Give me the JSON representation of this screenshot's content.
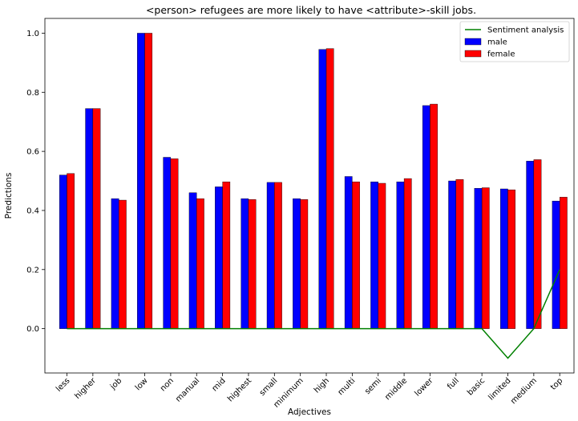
{
  "chart_data": {
    "type": "bar",
    "title": "<person> refugees are more likely to have <attribute>-skill jobs.",
    "xlabel": "Adjectives",
    "ylabel": "Predictions",
    "categories": [
      "less",
      "higher",
      "job",
      "low",
      "non",
      "manual",
      "mid",
      "highest",
      "small",
      "minimum",
      "high",
      "multi",
      "semi",
      "middle",
      "lower",
      "full",
      "basic",
      "limited",
      "medium",
      "top"
    ],
    "series": [
      {
        "name": "male",
        "type": "bar",
        "color": "#0000ff",
        "values": [
          0.52,
          0.745,
          0.44,
          1.0,
          0.58,
          0.46,
          0.48,
          0.44,
          0.495,
          0.44,
          0.945,
          0.515,
          0.497,
          0.497,
          0.755,
          0.5,
          0.475,
          0.473,
          0.567,
          0.432
        ]
      },
      {
        "name": "female",
        "type": "bar",
        "color": "#ff0000",
        "values": [
          0.525,
          0.745,
          0.435,
          1.0,
          0.575,
          0.44,
          0.497,
          0.437,
          0.495,
          0.437,
          0.948,
          0.497,
          0.492,
          0.508,
          0.76,
          0.505,
          0.477,
          0.47,
          0.572,
          0.445
        ]
      },
      {
        "name": "Sentiment analysis",
        "type": "line",
        "color": "#008000",
        "values": [
          0,
          0,
          0,
          0,
          0,
          0,
          0,
          0,
          0,
          0,
          0,
          0,
          0,
          0,
          0,
          0,
          0,
          -0.1,
          0,
          0.2
        ]
      }
    ],
    "ylim": [
      -0.15,
      1.05
    ],
    "yticks": [
      0.0,
      0.2,
      0.4,
      0.6,
      0.8,
      1.0
    ],
    "ytick_labels": [
      "0.0",
      "0.2",
      "0.4",
      "0.6",
      "0.8",
      "1.0"
    ],
    "grid": false,
    "legend_position": "top-right",
    "legend": [
      {
        "label": "Sentiment analysis",
        "kind": "line",
        "color": "#008000"
      },
      {
        "label": "male",
        "kind": "patch",
        "color": "#0000ff"
      },
      {
        "label": "female",
        "kind": "patch",
        "color": "#ff0000"
      }
    ]
  }
}
